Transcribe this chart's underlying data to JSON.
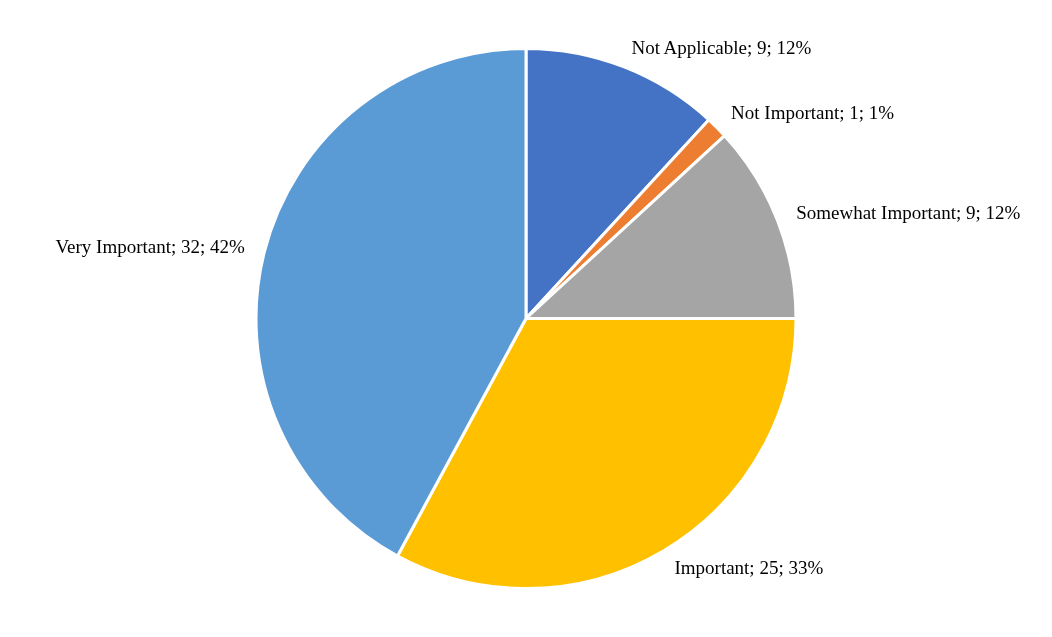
{
  "chart_data": {
    "type": "pie",
    "categories": [
      "Not Applicable",
      "Not Important",
      "Somewhat Important",
      "Important",
      "Very Important"
    ],
    "values": [
      9,
      1,
      9,
      25,
      32
    ],
    "colors": [
      "#4472c4",
      "#ed7d31",
      "#a5a5a5",
      "#ffc000",
      "#5b9bd5"
    ],
    "value_labels": [
      "9; 12%",
      "1; 1%",
      "9; 12%",
      "25; 33%",
      "32; 42%"
    ],
    "legend": false
  }
}
